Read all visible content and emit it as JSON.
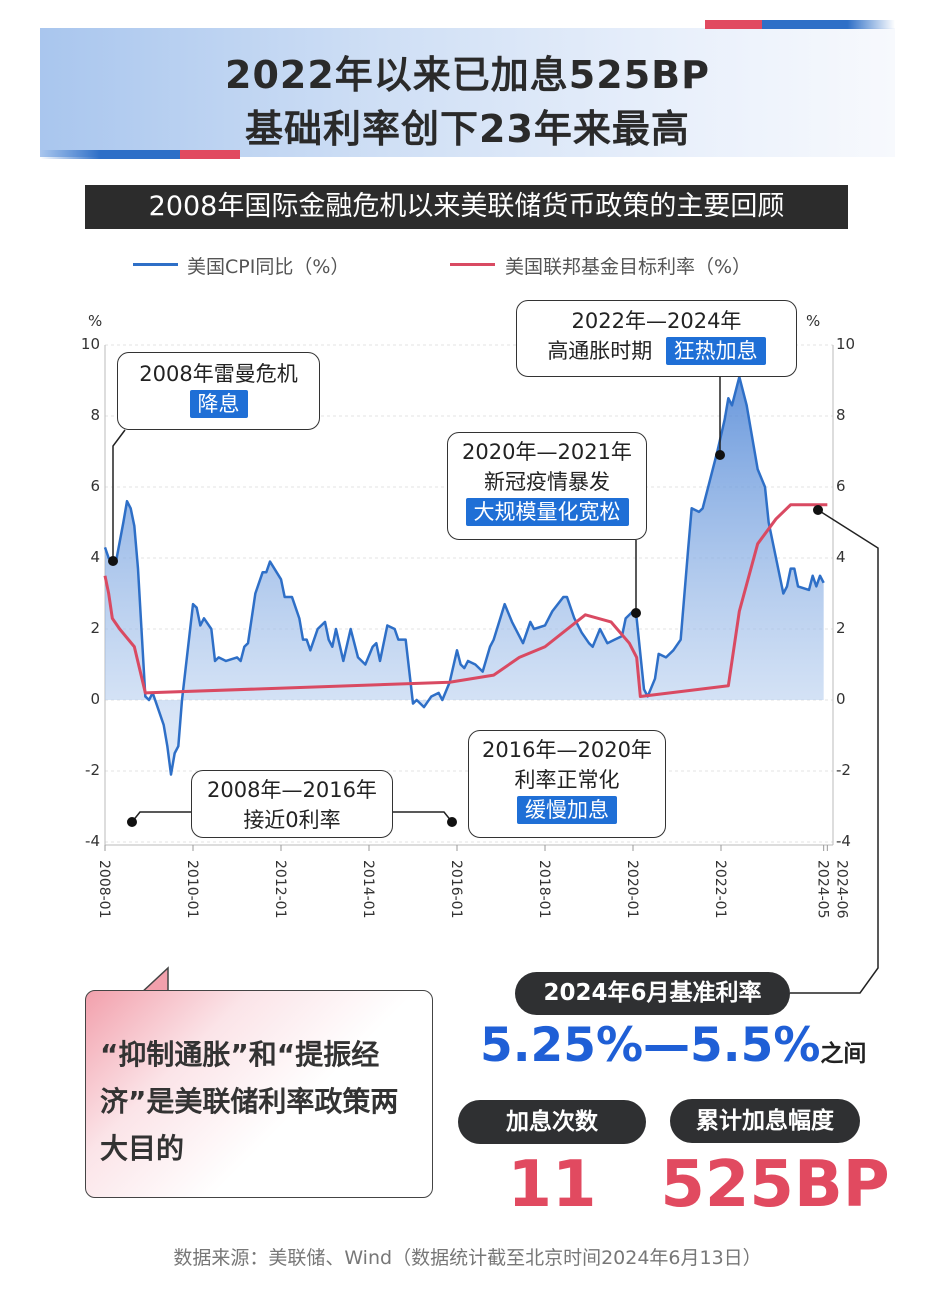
{
  "header": {
    "title_line1": "2022年以来已加息525BP",
    "title_line2": "基础利率创下23年来最高",
    "subtitle": "2008年国际金融危机以来美联储货币政策的主要回顾"
  },
  "colors": {
    "cpi": "#2e6fc7",
    "fed_rate": "#d94a62",
    "accent_blue": "#1f6fd6",
    "accent_red": "#e14a60",
    "dark_pill": "#2f3032"
  },
  "chart_data": {
    "type": "line",
    "legend_placement": "top",
    "y_unit_left": "%",
    "y_unit_right": "%",
    "ylim": [
      -4,
      10
    ],
    "y_ticks": [
      "10",
      "8",
      "6",
      "4",
      "2",
      "0",
      "-2",
      "-4"
    ],
    "x_ticks": [
      "2008-01",
      "2010-01",
      "2012-01",
      "2014-01",
      "2016-01",
      "2018-01",
      "2020-01",
      "2022-01",
      "2024-05",
      "2024-06"
    ],
    "grid": true,
    "series": [
      {
        "name": "美国CPI同比（%）",
        "type": "area-line",
        "points": [
          [
            "2008-01",
            4.3
          ],
          [
            "2008-02",
            4.0
          ],
          [
            "2008-04",
            3.9
          ],
          [
            "2008-06",
            5.0
          ],
          [
            "2008-07",
            5.6
          ],
          [
            "2008-08",
            5.4
          ],
          [
            "2008-09",
            4.9
          ],
          [
            "2008-10",
            3.7
          ],
          [
            "2008-12",
            0.1
          ],
          [
            "2009-01",
            0.0
          ],
          [
            "2009-02",
            0.2
          ],
          [
            "2009-04",
            -0.4
          ],
          [
            "2009-05",
            -0.7
          ],
          [
            "2009-06",
            -1.3
          ],
          [
            "2009-07",
            -2.1
          ],
          [
            "2009-08",
            -1.5
          ],
          [
            "2009-09",
            -1.3
          ],
          [
            "2009-10",
            0.0
          ],
          [
            "2009-12",
            1.8
          ],
          [
            "2010-01",
            2.7
          ],
          [
            "2010-02",
            2.6
          ],
          [
            "2010-03",
            2.1
          ],
          [
            "2010-04",
            2.3
          ],
          [
            "2010-06",
            2.0
          ],
          [
            "2010-07",
            1.1
          ],
          [
            "2010-08",
            1.2
          ],
          [
            "2010-10",
            1.1
          ],
          [
            "2011-01",
            1.2
          ],
          [
            "2011-02",
            1.1
          ],
          [
            "2011-03",
            1.5
          ],
          [
            "2011-04",
            1.6
          ],
          [
            "2011-06",
            3.0
          ],
          [
            "2011-08",
            3.6
          ],
          [
            "2011-09",
            3.6
          ],
          [
            "2011-10",
            3.9
          ],
          [
            "2012-01",
            3.4
          ],
          [
            "2012-02",
            2.9
          ],
          [
            "2012-04",
            2.9
          ],
          [
            "2012-06",
            2.3
          ],
          [
            "2012-07",
            1.7
          ],
          [
            "2012-08",
            1.7
          ],
          [
            "2012-09",
            1.4
          ],
          [
            "2012-11",
            2.0
          ],
          [
            "2013-01",
            2.2
          ],
          [
            "2013-02",
            1.7
          ],
          [
            "2013-03",
            1.5
          ],
          [
            "2013-04",
            2.0
          ],
          [
            "2013-06",
            1.1
          ],
          [
            "2013-08",
            2.0
          ],
          [
            "2013-10",
            1.2
          ],
          [
            "2013-12",
            1.0
          ],
          [
            "2014-02",
            1.5
          ],
          [
            "2014-03",
            1.6
          ],
          [
            "2014-04",
            1.1
          ],
          [
            "2014-06",
            2.1
          ],
          [
            "2014-08",
            2.0
          ],
          [
            "2014-09",
            1.7
          ],
          [
            "2014-11",
            1.7
          ],
          [
            "2014-12",
            0.8
          ],
          [
            "2015-01",
            -0.1
          ],
          [
            "2015-02",
            0.0
          ],
          [
            "2015-04",
            -0.2
          ],
          [
            "2015-06",
            0.1
          ],
          [
            "2015-08",
            0.2
          ],
          [
            "2015-09",
            0.0
          ],
          [
            "2015-11",
            0.5
          ],
          [
            "2016-01",
            1.4
          ],
          [
            "2016-02",
            1.0
          ],
          [
            "2016-03",
            0.9
          ],
          [
            "2016-04",
            1.1
          ],
          [
            "2016-06",
            1.0
          ],
          [
            "2016-08",
            0.8
          ],
          [
            "2016-10",
            1.5
          ],
          [
            "2016-11",
            1.7
          ],
          [
            "2017-02",
            2.7
          ],
          [
            "2017-04",
            2.2
          ],
          [
            "2017-07",
            1.6
          ],
          [
            "2017-09",
            2.2
          ],
          [
            "2017-10",
            2.0
          ],
          [
            "2018-01",
            2.1
          ],
          [
            "2018-03",
            2.5
          ],
          [
            "2018-06",
            2.9
          ],
          [
            "2018-07",
            2.9
          ],
          [
            "2018-09",
            2.3
          ],
          [
            "2018-11",
            1.9
          ],
          [
            "2019-01",
            1.6
          ],
          [
            "2019-02",
            1.5
          ],
          [
            "2019-04",
            2.0
          ],
          [
            "2019-06",
            1.6
          ],
          [
            "2019-08",
            1.7
          ],
          [
            "2019-10",
            1.8
          ],
          [
            "2019-11",
            2.3
          ],
          [
            "2020-01",
            2.5
          ],
          [
            "2020-02",
            2.3
          ],
          [
            "2020-04",
            0.3
          ],
          [
            "2020-05",
            0.1
          ],
          [
            "2020-07",
            0.6
          ],
          [
            "2020-08",
            1.3
          ],
          [
            "2020-10",
            1.2
          ],
          [
            "2020-12",
            1.4
          ],
          [
            "2021-02",
            1.7
          ],
          [
            "2021-04",
            4.2
          ],
          [
            "2021-05",
            5.4
          ],
          [
            "2021-07",
            5.3
          ],
          [
            "2021-08",
            5.4
          ],
          [
            "2021-10",
            6.2
          ],
          [
            "2021-12",
            7.0
          ],
          [
            "2022-02",
            7.9
          ],
          [
            "2022-03",
            8.5
          ],
          [
            "2022-04",
            8.3
          ],
          [
            "2022-06",
            9.1
          ],
          [
            "2022-08",
            8.3
          ],
          [
            "2022-09",
            7.7
          ],
          [
            "2022-11",
            6.5
          ],
          [
            "2023-01",
            6.0
          ],
          [
            "2023-02",
            5.0
          ],
          [
            "2023-04",
            4.0
          ],
          [
            "2023-06",
            3.0
          ],
          [
            "2023-07",
            3.2
          ],
          [
            "2023-08",
            3.7
          ],
          [
            "2023-09",
            3.7
          ],
          [
            "2023-10",
            3.2
          ],
          [
            "2024-01",
            3.1
          ],
          [
            "2024-02",
            3.5
          ],
          [
            "2024-03",
            3.2
          ],
          [
            "2024-04",
            3.5
          ],
          [
            "2024-05",
            3.3
          ]
        ]
      },
      {
        "name": "美国联邦基金目标利率（%）",
        "type": "line",
        "points": [
          [
            "2008-01",
            3.5
          ],
          [
            "2008-02",
            3.0
          ],
          [
            "2008-03",
            2.3
          ],
          [
            "2008-05",
            2.0
          ],
          [
            "2008-09",
            1.5
          ],
          [
            "2008-12",
            0.2
          ],
          [
            "2015-11",
            0.5
          ],
          [
            "2016-11",
            0.7
          ],
          [
            "2017-06",
            1.2
          ],
          [
            "2018-01",
            1.5
          ],
          [
            "2018-12",
            2.4
          ],
          [
            "2019-07",
            2.2
          ],
          [
            "2019-12",
            1.6
          ],
          [
            "2020-02",
            1.2
          ],
          [
            "2020-03",
            0.1
          ],
          [
            "2022-03",
            0.4
          ],
          [
            "2022-06",
            2.5
          ],
          [
            "2022-11",
            4.4
          ],
          [
            "2023-04",
            5.1
          ],
          [
            "2023-08",
            5.5
          ],
          [
            "2024-06",
            5.5
          ]
        ]
      }
    ]
  },
  "annotations": {
    "lehman": {
      "line1": "2008年雷曼危机",
      "tag": "降息"
    },
    "zero_rate": {
      "line1": "2008年—2016年",
      "line2": "接近0利率"
    },
    "normalize": {
      "line1": "2016年—2020年",
      "line2": "利率正常化",
      "tag": "缓慢加息"
    },
    "covid": {
      "line1": "2020年—2021年",
      "line2": "新冠疫情暴发",
      "tag": "大规模量化宽松"
    },
    "inflation": {
      "line1": "2022年—2024年",
      "line2": "高通胀时期",
      "tag": "狂热加息"
    }
  },
  "summary": {
    "benchmark_label": "2024年6月基准利率",
    "benchmark_value": "5.25%—5.5%",
    "benchmark_suffix": "之间",
    "hikes_label": "加息次数",
    "hikes_value": "11",
    "cumulative_label": "累计加息幅度",
    "cumulative_value": "525BP",
    "bubble_text": "“抑制通胀”和“提振经济”是美联储利率政策两大目的"
  },
  "source": "数据来源：美联储、Wind（数据统计截至北京时间2024年6月13日）"
}
